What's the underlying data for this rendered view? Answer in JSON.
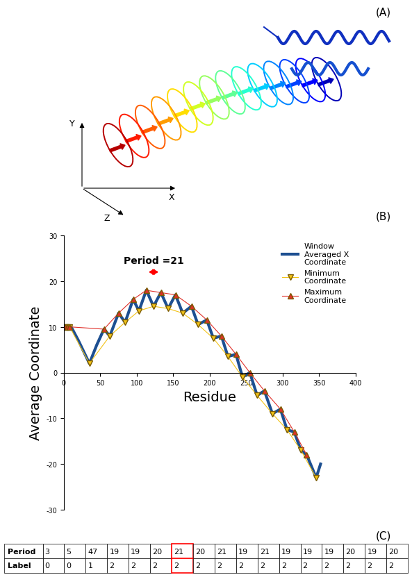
{
  "panel_labels": [
    "(A)",
    "(B)",
    "(C)"
  ],
  "structure": {
    "axis_labels": {
      "y": "Y",
      "x": "X",
      "z": "Z"
    }
  },
  "chart_data": {
    "type": "line",
    "xlabel": "Residue",
    "ylabel": "Average Coordinate",
    "xlim": [
      0,
      400
    ],
    "xticks": [
      0,
      50,
      100,
      150,
      200,
      250,
      300,
      350,
      400
    ],
    "ylim": [
      -30,
      30
    ],
    "yticks": [
      -30,
      -20,
      -10,
      0,
      10,
      20,
      30
    ],
    "grid": false,
    "legend": "upper right",
    "annotations": [
      {
        "text": "Period =21",
        "x_from": 113,
        "x_to": 133,
        "y": 22
      }
    ],
    "series": [
      {
        "name": "Window\nAveraged X\nCoordinate",
        "type": "line",
        "color": "#1d4f91",
        "line_style": "solid",
        "x": [
          0,
          5,
          10,
          20,
          35,
          45,
          55,
          63,
          75,
          84,
          95,
          103,
          113,
          123,
          133,
          143,
          153,
          163,
          175,
          184,
          196,
          205,
          216,
          225,
          236,
          245,
          255,
          265,
          275,
          286,
          297,
          306,
          316,
          325,
          333,
          346,
          352
        ],
        "values": [
          10,
          10,
          10,
          7,
          2,
          6,
          9.5,
          8,
          13,
          11,
          16,
          13.5,
          18,
          14.5,
          17.5,
          14,
          17,
          13,
          14.5,
          10.5,
          11.5,
          7.5,
          8,
          3.5,
          4,
          -1,
          0,
          -5,
          -4,
          -9,
          -8,
          -12.5,
          -13,
          -17,
          -18,
          -23,
          -20
        ]
      },
      {
        "name": "Minimum\nCoordinate",
        "type": "line",
        "color": "#f2c318",
        "marker": "v",
        "line_style": "solid",
        "x": [
          2,
          5,
          8,
          35,
          63,
          84,
          103,
          123,
          143,
          163,
          184,
          205,
          225,
          245,
          265,
          286,
          306,
          325,
          346
        ],
        "values": [
          10,
          10,
          10,
          2,
          8,
          11,
          13.5,
          14.5,
          14,
          13,
          10.5,
          7.5,
          3.5,
          -1,
          -5,
          -9,
          -12.5,
          -17,
          -23
        ]
      },
      {
        "name": "Maximum\nCoordinate",
        "type": "line",
        "color": "#e0302a",
        "marker": "^",
        "line_style": "solid",
        "x": [
          2,
          5,
          8,
          55,
          75,
          95,
          113,
          133,
          153,
          175,
          196,
          216,
          236,
          255,
          275,
          297,
          316,
          333
        ],
        "values": [
          10,
          10,
          10,
          9.5,
          13,
          16,
          18,
          17.5,
          17,
          14.5,
          11.5,
          8,
          4,
          0,
          -4,
          -8,
          -13,
          -18
        ]
      }
    ]
  },
  "table": {
    "rows": [
      [
        "Period",
        3,
        5,
        47,
        19,
        19,
        20,
        21,
        20,
        21,
        19,
        21,
        19,
        19,
        19,
        20,
        19,
        20
      ],
      [
        "Label",
        0,
        0,
        1,
        2,
        2,
        2,
        2,
        2,
        2,
        2,
        2,
        2,
        2,
        2,
        2,
        2,
        2
      ]
    ],
    "highlighted_column": 7
  }
}
